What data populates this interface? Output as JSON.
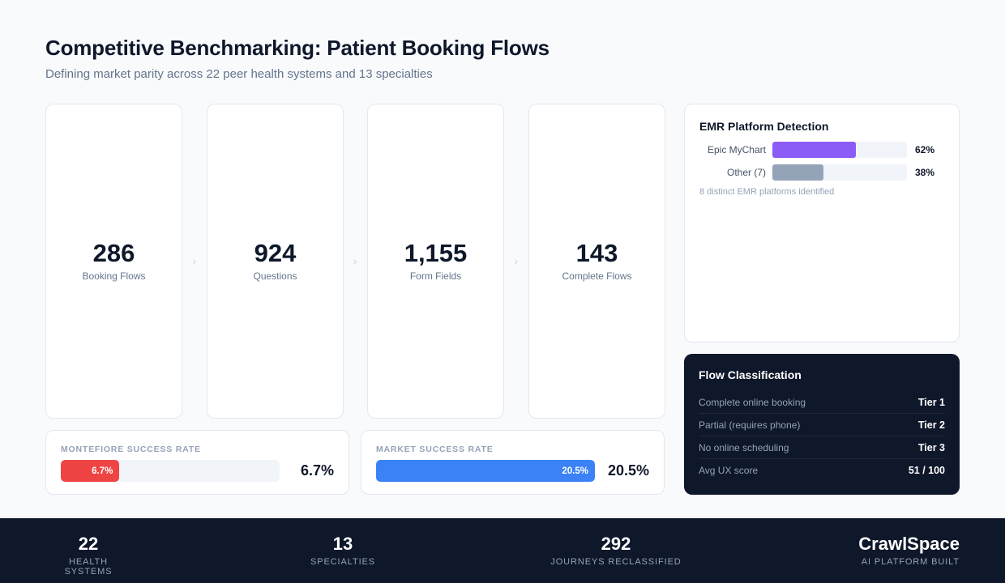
{
  "header": {
    "title": "Competitive Benchmarking: Patient Booking Flows",
    "subtitle": "Defining market parity across 22 peer health systems and 13 specialties"
  },
  "funnel": [
    {
      "value": "286",
      "label": "Booking Flows"
    },
    {
      "value": "924",
      "label": "Questions"
    },
    {
      "value": "1,155",
      "label": "Form Fields"
    },
    {
      "value": "143",
      "label": "Complete Flows"
    }
  ],
  "funnel_separator": "›",
  "rates": {
    "montefiore": {
      "label": "MONTEFIORE SUCCESS RATE",
      "bar_label": "6.7%",
      "value": "6.7%",
      "percent": 6.7,
      "color": "#ef4444",
      "scale_max": 25
    },
    "market": {
      "label": "MARKET SUCCESS RATE",
      "bar_label": "20.5%",
      "value": "20.5%",
      "percent": 20.5,
      "color": "#3b82f6",
      "scale_max": 20.5
    }
  },
  "emr": {
    "title": "EMR Platform Detection",
    "rows": [
      {
        "name": "Epic MyChart",
        "pct": "62%",
        "percent": 62,
        "color": "#8b5cf6"
      },
      {
        "name": "Other (7)",
        "pct": "38%",
        "percent": 38,
        "color": "#94a3b8"
      }
    ],
    "note": "8 distinct EMR platforms identified"
  },
  "flow": {
    "title": "Flow Classification",
    "rows": [
      {
        "label": "Complete online booking",
        "value": "Tier 1"
      },
      {
        "label": "Partial (requires phone)",
        "value": "Tier 2"
      },
      {
        "label": "No online scheduling",
        "value": "Tier 3"
      },
      {
        "label": "Avg UX score",
        "value": "51 / 100"
      }
    ]
  },
  "footer": {
    "stats": [
      {
        "value": "22",
        "label": "HEALTH SYSTEMS"
      },
      {
        "value": "13",
        "label": "SPECIALTIES"
      },
      {
        "value": "292",
        "label": "JOURNEYS RECLASSIFIED"
      }
    ],
    "brand": {
      "name": "CrawlSpace",
      "tagline": "AI PLATFORM BUILT"
    }
  }
}
